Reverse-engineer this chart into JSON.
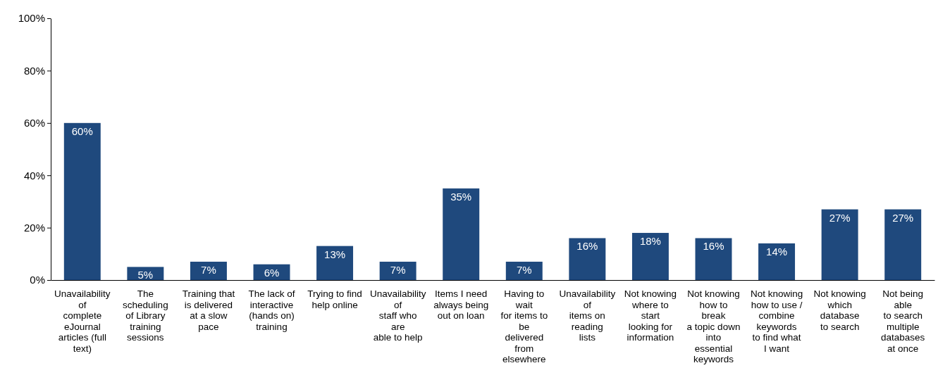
{
  "chart_data": {
    "type": "bar",
    "categories": [
      "Unavailability\nof\ncomplete\neJournal\narticles (full\ntext)",
      "The\nscheduling\nof Library\ntraining\nsessions",
      "Training that\nis delivered\nat a slow\npace",
      "The lack of\ninteractive\n(hands on)\ntraining",
      "Trying to find\nhelp online",
      "Unavailability\nof\nstaff who\nare\nable to help",
      "Items I need\nalways being\nout on loan",
      "Having to\nwait\nfor items to\nbe\ndelivered\nfrom\nelsewhere",
      "Unavailability\nof\nitems on\nreading\nlists",
      "Not knowing\nwhere to\nstart\nlooking for\ninformation",
      "Not knowing\nhow to\nbreak\na topic down\ninto\nessential\nkeywords",
      "Not knowing\nhow to use /\ncombine\nkeywords\nto find what\nI want",
      "Not knowing\nwhich\ndatabase\nto search",
      "Not being\nable\nto search\nmultiple\ndatabases\nat once"
    ],
    "values": [
      60,
      5,
      7,
      6,
      13,
      7,
      35,
      7,
      16,
      18,
      16,
      14,
      27,
      27
    ],
    "color": "#1f497d",
    "ylim": [
      0,
      100
    ],
    "yticks": [
      {
        "value": 0,
        "label": "0%"
      },
      {
        "value": 20,
        "label": "20%"
      },
      {
        "value": 40,
        "label": "40%"
      },
      {
        "value": 60,
        "label": "60%"
      },
      {
        "value": 80,
        "label": "80%"
      },
      {
        "value": 100,
        "label": "100%"
      }
    ],
    "value_labels": [
      "60%",
      "5%",
      "7%",
      "6%",
      "13%",
      "7%",
      "35%",
      "7%",
      "16%",
      "18%",
      "16%",
      "14%",
      "27%",
      "27%"
    ],
    "grid": false
  }
}
